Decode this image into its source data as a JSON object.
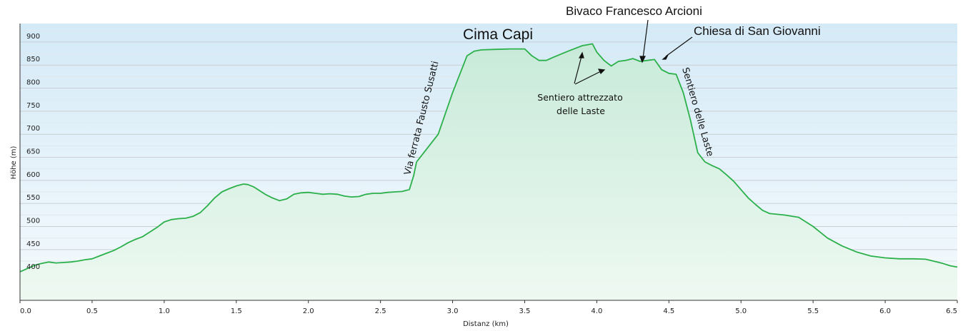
{
  "chart_data": {
    "type": "area",
    "xlabel": "Distanz  (km)",
    "ylabel": "Höhe (m)",
    "xlim": [
      0,
      6.5
    ],
    "ylim": [
      340,
      940
    ],
    "x_ticks": [
      "0.0",
      "0.5",
      "1.0",
      "1.5",
      "2.0",
      "2.5",
      "3.0",
      "3.5",
      "4.0",
      "4.5",
      "5.0",
      "5.5",
      "6.0",
      "6.5"
    ],
    "y_ticks": [
      "400",
      "450",
      "500",
      "550",
      "600",
      "650",
      "700",
      "750",
      "800",
      "850",
      "900"
    ],
    "grid": true,
    "colors": {
      "line": "#2bb04a",
      "fill_top": "#c8ead9",
      "fill_bottom": "#eef9f2",
      "bg_top": "#d4eaf7",
      "bg_bottom": "#f5fafd",
      "grid": "#c9cfd4"
    },
    "series": [
      {
        "x": [
          0.0,
          0.03,
          0.06,
          0.1,
          0.15,
          0.2,
          0.25,
          0.3,
          0.35,
          0.4,
          0.45,
          0.5,
          0.55,
          0.6,
          0.65,
          0.7,
          0.75,
          0.8,
          0.85,
          0.9,
          0.95,
          1.0,
          1.05,
          1.1,
          1.15,
          1.2,
          1.25,
          1.3,
          1.35,
          1.4,
          1.45,
          1.5,
          1.55,
          1.58,
          1.62,
          1.65,
          1.7,
          1.75,
          1.8,
          1.85,
          1.9,
          1.95,
          2.0,
          2.05,
          2.1,
          2.15,
          2.2,
          2.25,
          2.3,
          2.35,
          2.4,
          2.45,
          2.5,
          2.55,
          2.6,
          2.65,
          2.7,
          2.73,
          2.75,
          2.8,
          2.9,
          3.0,
          3.1,
          3.15,
          3.2,
          3.3,
          3.4,
          3.5,
          3.55,
          3.6,
          3.65,
          3.7,
          3.8,
          3.9,
          3.97,
          4.0,
          4.05,
          4.1,
          4.15,
          4.2,
          4.25,
          4.3,
          4.35,
          4.4,
          4.45,
          4.5,
          4.55,
          4.6,
          4.65,
          4.7,
          4.75,
          4.8,
          4.85,
          4.9,
          4.95,
          5.0,
          5.05,
          5.1,
          5.15,
          5.2,
          5.3,
          5.4,
          5.5,
          5.6,
          5.7,
          5.8,
          5.9,
          6.0,
          6.1,
          6.2,
          6.28,
          6.35,
          6.4,
          6.45,
          6.5
        ],
        "y": [
          402,
          406,
          410,
          416,
          420,
          423,
          421,
          422,
          423,
          425,
          428,
          430,
          436,
          442,
          448,
          456,
          465,
          472,
          478,
          488,
          498,
          510,
          515,
          517,
          518,
          522,
          530,
          545,
          562,
          575,
          582,
          588,
          592,
          591,
          586,
          580,
          570,
          562,
          556,
          560,
          570,
          573,
          574,
          572,
          570,
          571,
          570,
          566,
          564,
          565,
          570,
          572,
          572,
          574,
          575,
          576,
          580,
          610,
          640,
          660,
          700,
          790,
          870,
          880,
          883,
          884,
          885,
          885,
          870,
          860,
          860,
          867,
          880,
          892,
          896,
          878,
          860,
          848,
          858,
          860,
          864,
          858,
          860,
          862,
          840,
          832,
          830,
          790,
          730,
          660,
          640,
          632,
          625,
          612,
          598,
          580,
          562,
          548,
          535,
          528,
          525,
          520,
          500,
          475,
          458,
          445,
          436,
          432,
          430,
          430,
          429,
          424,
          420,
          415,
          412
        ]
      }
    ],
    "annotations": {
      "cima_capi": "Cima Capi",
      "bivaco": "Bivaco Francesco Arcioni",
      "chiesa": "Chiesa di San Giovanni",
      "sentiero_attrezzato_1": "Sentiero attrezzato",
      "sentiero_attrezzato_2": "delle Laste",
      "via_ferrata": "Via ferrata Fausto Susatti",
      "sentiero_laste": "Sentiero delle Laste"
    }
  }
}
